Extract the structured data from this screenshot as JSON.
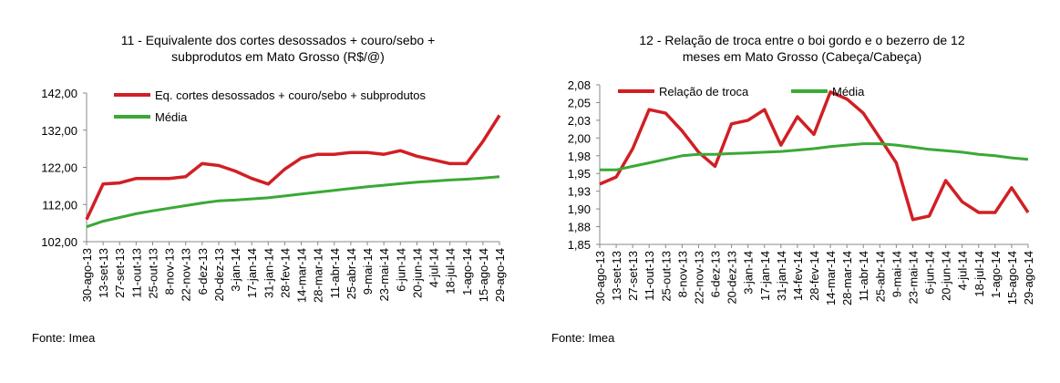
{
  "chart_data": [
    {
      "type": "line",
      "title": [
        "11 - Equivalente dos cortes desossados + couro/sebo +",
        "subprodutos em Mato Grosso (R$/@)"
      ],
      "categories": [
        "30-ago-13",
        "13-set-13",
        "27-set-13",
        "11-out-13",
        "25-out-13",
        "8-nov-13",
        "22-nov-13",
        "6-dez-13",
        "20-dez-13",
        "3-jan-14",
        "17-jan-14",
        "31-jan-14",
        "28-fev-14",
        "14-mar-14",
        "28-mar-14",
        "11-abr-14",
        "25-abr-14",
        "9-mai-14",
        "23-mai-14",
        "6-jun-14",
        "20-jun-14",
        "4-jul-14",
        "18-jul-14",
        "1-ago-14",
        "15-ago-14",
        "29-ago-14"
      ],
      "series": [
        {
          "name": "Eq. cortes desossados + couro/sebo + subprodutos",
          "color": "#d11f24",
          "values": [
            108,
            117.5,
            117.8,
            119,
            119,
            119,
            119.5,
            123,
            122.5,
            121,
            119,
            117.5,
            121.5,
            124.5,
            125.5,
            125.5,
            126,
            126,
            125.5,
            126.5,
            125,
            124,
            123,
            123,
            129,
            136
          ]
        },
        {
          "name": "Média",
          "color": "#3aa935",
          "values": [
            106,
            107.5,
            108.5,
            109.5,
            110.3,
            111,
            111.7,
            112.4,
            113,
            113.2,
            113.5,
            113.8,
            114.3,
            114.8,
            115.3,
            115.8,
            116.3,
            116.8,
            117.2,
            117.6,
            118,
            118.3,
            118.6,
            118.8,
            119.1,
            119.5
          ]
        }
      ],
      "ylim": [
        102,
        142
      ],
      "yticks": [
        {
          "value": 102,
          "label": "102,00"
        },
        {
          "value": 112,
          "label": "112,00"
        },
        {
          "value": 122,
          "label": "122,00"
        },
        {
          "value": 132,
          "label": "132,00"
        },
        {
          "value": 142,
          "label": "142,00"
        }
      ],
      "source": "Fonte: Imea"
    },
    {
      "type": "line",
      "title": [
        "12 - Relação de troca entre o boi gordo e o bezerro de 12",
        "meses em Mato Grosso (Cabeça/Cabeça)"
      ],
      "categories": [
        "30-ago-13",
        "13-set-13",
        "27-set-13",
        "11-out-13",
        "25-out-13",
        "8-nov-13",
        "22-nov-13",
        "6-dez-13",
        "20-dez-13",
        "3-jan-14",
        "17-jan-14",
        "31-jan-14",
        "14-fev-14",
        "28-fev-14",
        "14-mar-14",
        "28-mar-14",
        "11-abr-14",
        "25-abr-14",
        "9-mai-14",
        "23-mai-14",
        "6-jun-14",
        "20-jun-14",
        "4-jul-14",
        "18-jul-14",
        "1-ago-14",
        "15-ago-14",
        "29-ago-14"
      ],
      "series": [
        {
          "name": "Relação de troca",
          "color": "#d11f24",
          "values": [
            1.935,
            1.945,
            1.985,
            2.04,
            2.035,
            2.01,
            1.98,
            1.96,
            2.02,
            2.025,
            2.04,
            1.99,
            2.03,
            2.005,
            2.065,
            2.055,
            2.035,
            2.0,
            1.965,
            1.885,
            1.89,
            1.94,
            1.91,
            1.895,
            1.895,
            1.93,
            1.895
          ]
        },
        {
          "name": "Média",
          "color": "#3aa935",
          "values": [
            1.955,
            1.955,
            1.96,
            1.965,
            1.97,
            1.975,
            1.977,
            1.977,
            1.978,
            1.979,
            1.98,
            1.981,
            1.983,
            1.985,
            1.988,
            1.99,
            1.992,
            1.992,
            1.99,
            1.987,
            1.984,
            1.982,
            1.98,
            1.977,
            1.975,
            1.972,
            1.97
          ]
        }
      ],
      "ylim": [
        1.85,
        2.075
      ],
      "yticks": [
        {
          "value": 1.85,
          "label": "1,85"
        },
        {
          "value": 1.875,
          "label": "1,88"
        },
        {
          "value": 1.9,
          "label": "1,90"
        },
        {
          "value": 1.925,
          "label": "1,93"
        },
        {
          "value": 1.95,
          "label": "1,95"
        },
        {
          "value": 1.975,
          "label": "1,98"
        },
        {
          "value": 2.0,
          "label": "2,00"
        },
        {
          "value": 2.025,
          "label": "2,03"
        },
        {
          "value": 2.05,
          "label": "2,05"
        },
        {
          "value": 2.075,
          "label": "2,08"
        }
      ],
      "source": "Fonte: Imea"
    }
  ]
}
